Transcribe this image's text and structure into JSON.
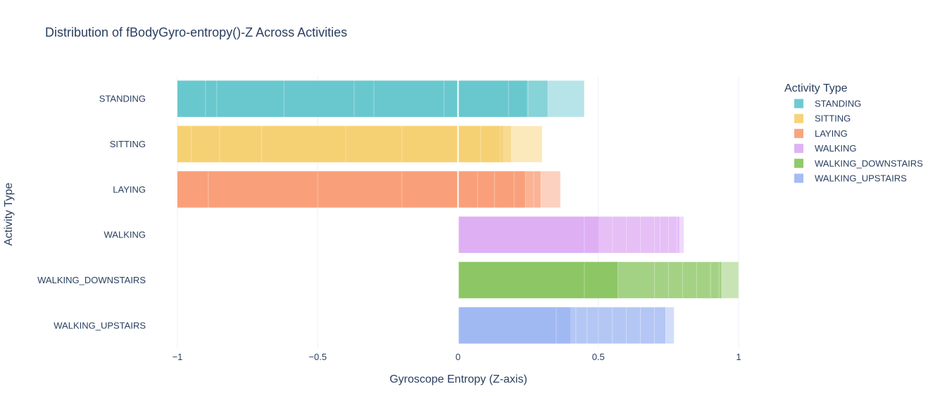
{
  "chart_data": {
    "type": "bar",
    "orientation": "horizontal",
    "title": "Distribution of fBodyGyro-entropy()-Z Across Activities",
    "xlabel": "Gyroscope Entropy (Z-axis)",
    "ylabel": "Activity Type",
    "xlim": [
      -1,
      1
    ],
    "x_ticks": [
      -1,
      -0.5,
      0,
      0.5,
      1
    ],
    "x_tick_labels": [
      "−1",
      "−0.5",
      "0",
      "0.5",
      "1"
    ],
    "grid": "vertical",
    "legend": {
      "title": "Activity Type",
      "placement": "right",
      "entries": [
        "STANDING",
        "SITTING",
        "LAYING",
        "WALKING",
        "WALKING_DOWNSTAIRS",
        "WALKING_UPSTAIRS"
      ]
    },
    "categories": [
      "STANDING",
      "SITTING",
      "LAYING",
      "WALKING",
      "WALKING_DOWNSTAIRS",
      "WALKING_UPSTAIRS"
    ],
    "series": [
      {
        "name": "STANDING",
        "color": "#5fc4cb",
        "min": -1.0,
        "max": 0.45,
        "dense_max": 0.32,
        "core_max": 0.245,
        "overlay_values": [
          -0.9,
          -0.86,
          -0.62,
          -0.37,
          -0.3,
          -0.05,
          0.18,
          0.25,
          0.32,
          0.45
        ]
      },
      {
        "name": "SITTING",
        "color": "#f6ce6b",
        "min": -1.0,
        "max": 0.3,
        "dense_max": 0.19,
        "core_max": 0.16,
        "overlay_values": [
          -0.95,
          -0.85,
          -0.7,
          -0.4,
          -0.2,
          0.08,
          0.15,
          0.19,
          0.3
        ]
      },
      {
        "name": "LAYING",
        "color": "#f89a72",
        "min": -1.0,
        "max": 0.365,
        "dense_max": 0.295,
        "core_max": 0.24,
        "overlay_values": [
          -0.89,
          -0.5,
          -0.2,
          0.07,
          0.13,
          0.2,
          0.24,
          0.27,
          0.295,
          0.365
        ]
      },
      {
        "name": "WALKING",
        "color": "#dcaaf3",
        "min": 0.0,
        "max": 0.805,
        "dense_max": 0.79,
        "core_max": 0.5,
        "overlay_values": [
          0.45,
          0.55,
          0.6,
          0.65,
          0.7,
          0.72,
          0.75,
          0.78,
          0.79,
          0.805
        ]
      },
      {
        "name": "WALKING_DOWNSTAIRS",
        "color": "#86c35b",
        "min": 0.0,
        "max": 1.0,
        "dense_max": 0.94,
        "core_max": 0.57,
        "overlay_values": [
          0.45,
          0.57,
          0.7,
          0.75,
          0.8,
          0.85,
          0.9,
          0.93,
          0.94,
          1.0
        ]
      },
      {
        "name": "WALKING_UPSTAIRS",
        "color": "#9bb4f1",
        "min": 0.0,
        "max": 0.77,
        "dense_max": 0.74,
        "core_max": 0.4,
        "overlay_values": [
          0.35,
          0.42,
          0.46,
          0.5,
          0.55,
          0.6,
          0.65,
          0.7,
          0.74,
          0.77
        ]
      }
    ]
  }
}
